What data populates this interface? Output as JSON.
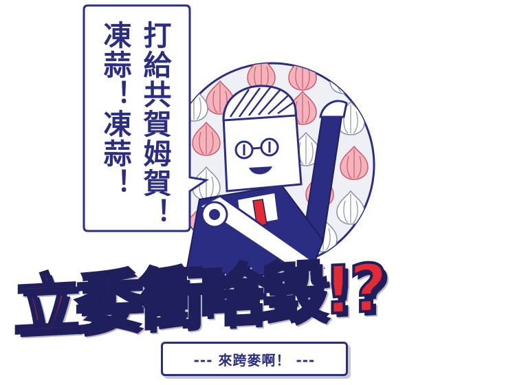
{
  "speech_bubble": {
    "line1": "打給共賀姆賀！",
    "line2": "凍蒜！凍蒜！"
  },
  "headline": "立委衝啥毀!?",
  "subtitle": "--- 來跨麥啊！ ---",
  "colors": {
    "navy": "#2b2d82",
    "red": "#e32b36",
    "dark_outline": "#1e1f5c",
    "light_circle": "#eef0f6"
  },
  "icon_names": [
    "garlic-icon",
    "speech-bubble",
    "politician-illustration"
  ]
}
